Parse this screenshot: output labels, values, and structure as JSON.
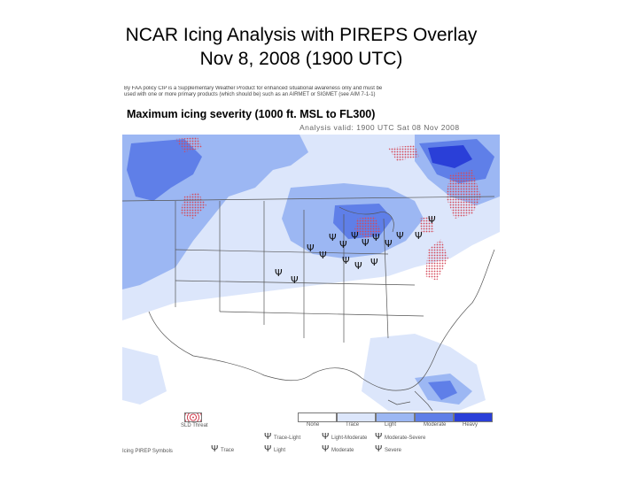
{
  "slide": {
    "title_line1": "NCAR Icing Analysis with PIREPS Overlay",
    "title_line2": "Nov 8, 2008 (1900 UTC)"
  },
  "panel": {
    "disclaimer_line1": "By FAA policy CIP is a Supplementary Weather Product for enhanced situational awareness only and must be",
    "disclaimer_line2": "used with one or more primary products (which should be) such as an AIRMET or SIGMET (see AIM 7-1-1)",
    "map_title": "Maximum icing severity (1000 ft. MSL to FL300)",
    "valid_time": "Analysis valid: 1900 UTC Sat 08 Nov 2008"
  },
  "legend": {
    "scale": [
      {
        "label": "None",
        "color": "#ffffff"
      },
      {
        "label": "Trace",
        "color": "#dce6fb"
      },
      {
        "label": "Light",
        "color": "#9cb7f3"
      },
      {
        "label": "Moderate",
        "color": "#5f7fe8"
      },
      {
        "label": "Heavy",
        "color": "#2a3fd8"
      }
    ],
    "sld_label": "SLD Threat",
    "sld_color": "#d44a5a",
    "pirep_title": "Icing PIREP Symbols",
    "pireps": [
      {
        "label": "Trace",
        "symbol": "Ψ"
      },
      {
        "label": "Trace-Light",
        "symbol": "Ψ"
      },
      {
        "label": "Light",
        "symbol": "Ψ"
      },
      {
        "label": "Light-Moderate",
        "symbol": "Ψ"
      },
      {
        "label": "Moderate",
        "symbol": "Ψ"
      },
      {
        "label": "Moderate-Severe",
        "symbol": "Ψ"
      },
      {
        "label": "Severe",
        "symbol": "Ψ"
      }
    ]
  },
  "colors": {
    "map_background": "#ffffff",
    "trace": "#dce6fb",
    "light": "#9cb7f3",
    "moderate": "#5f7fe8",
    "heavy": "#2a3fd8",
    "sld": "#d44a5a",
    "outline": "#555555"
  }
}
